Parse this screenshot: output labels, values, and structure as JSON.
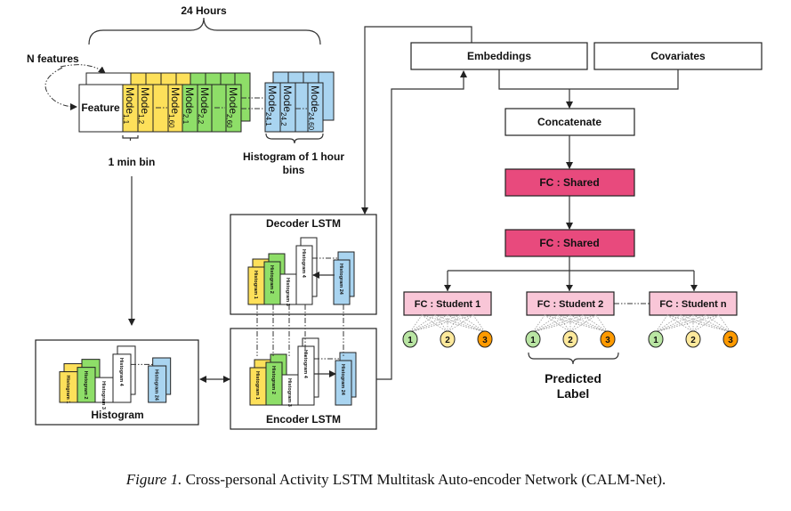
{
  "top": {
    "hours_label": "24 Hours",
    "n_features_label": "N features",
    "feature_label": "Feature",
    "mode_prefix": "Mode",
    "mode_subs": [
      "1,1",
      "1,2",
      "1,60",
      "2,1",
      "2,2",
      "2,60"
    ],
    "blue_mode_subs": [
      "24,1",
      "24,2",
      "24,60"
    ],
    "min_bin_label": "1 min bin",
    "hist_hour_label_1": "Histogram of 1 hour",
    "hist_hour_label_2": "bins"
  },
  "histogram_box": {
    "title": "Histogram",
    "labels": [
      "Histogram 1",
      "Histogram 2",
      "Histogram 3",
      "Histogram 4",
      "Histogram 24"
    ]
  },
  "decoder": {
    "title": "Decoder LSTM",
    "labels": [
      "Histogram 1",
      "Histogram 2",
      "Histogram 3",
      "Histogram 4",
      "Histogram 24"
    ]
  },
  "encoder": {
    "title": "Encoder LSTM",
    "labels": [
      "Histogram 1",
      "Histogram 2",
      "Histogram 3",
      "Histogram 4",
      "Histogram 24"
    ]
  },
  "network": {
    "embeddings": "Embeddings",
    "covariates": "Covariates",
    "concatenate": "Concatenate",
    "fc_shared_1": "FC : Shared",
    "fc_shared_2": "FC : Shared",
    "students": [
      "FC : Student 1",
      "FC : Student 2",
      "FC : Student n"
    ],
    "outputs": [
      "1",
      "2",
      "3"
    ],
    "predicted_label_1": "Predicted",
    "predicted_label_2": "Label"
  },
  "caption": {
    "figure": "Figure 1.",
    "text": " Cross-personal Activity LSTM Multitask Auto-encoder Network (CALM-Net)."
  },
  "colors": {
    "yellow": "#fde05a",
    "green": "#8ede68",
    "blue": "#a9d4f0",
    "fc_shared": "#e84a7d",
    "student": "#f9c6d7",
    "out1": "#b9e5a3",
    "out2": "#fde99c",
    "out3": "#ff9a00"
  }
}
